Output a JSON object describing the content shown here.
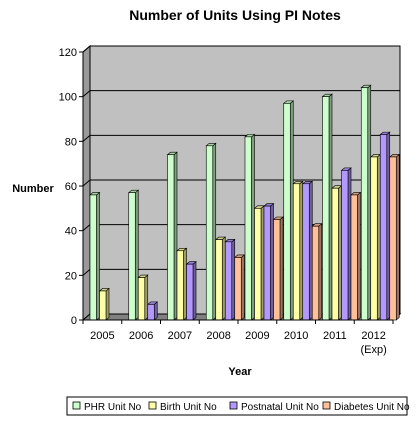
{
  "chart_data": {
    "type": "bar",
    "title": "Number of Units Using PI Notes",
    "xlabel": "Year",
    "ylabel": "Number",
    "categories": [
      "2005",
      "2006",
      "2007",
      "2008",
      "2009",
      "2010",
      "2011",
      "2012"
    ],
    "category_sublabels": [
      "",
      "",
      "",
      "",
      "",
      "",
      "",
      "(Exp)"
    ],
    "ylim": [
      0,
      120
    ],
    "yticks": [
      0,
      20,
      40,
      60,
      80,
      100,
      120
    ],
    "grid": true,
    "legend_position": "bottom",
    "series": [
      {
        "name": "PHR Unit No",
        "color": "#ccffcc",
        "values": [
          56,
          57,
          74,
          78,
          82,
          97,
          100,
          104
        ]
      },
      {
        "name": "Birth Unit No",
        "color": "#ffffa6",
        "values": [
          13,
          19,
          31,
          36,
          50,
          61,
          59,
          73
        ]
      },
      {
        "name": "Postnatal Unit No",
        "color": "#b399ff",
        "values": [
          0,
          7,
          25,
          35,
          51,
          61,
          67,
          83
        ]
      },
      {
        "name": "Diabetes Unit No",
        "color": "#ffbf99",
        "values": [
          0,
          0,
          0,
          28,
          45,
          42,
          56,
          73
        ]
      }
    ],
    "colors": {
      "plot_background": "#c0c0c0",
      "floor": "#808080",
      "gridline": "#000000"
    }
  }
}
